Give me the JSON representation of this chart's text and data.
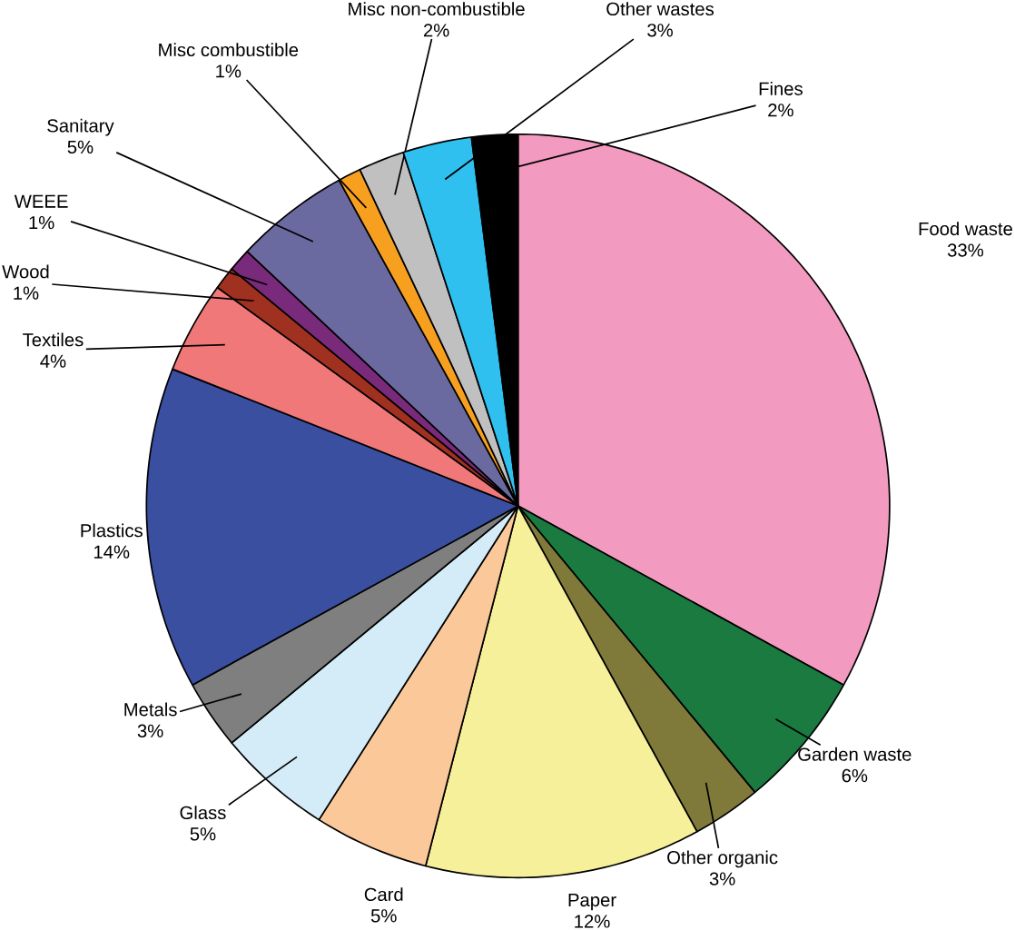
{
  "chart_data": {
    "type": "pie",
    "categories": [
      "Food waste",
      "Garden waste",
      "Other organic",
      "Paper",
      "Card",
      "Glass",
      "Metals",
      "Plastics",
      "Textiles",
      "Wood",
      "WEEE",
      "Sanitary",
      "Misc combustible",
      "Misc non-combustible",
      "Other wastes",
      "Fines"
    ],
    "values": [
      33,
      6,
      3,
      12,
      5,
      5,
      3,
      14,
      4,
      1,
      1,
      5,
      1,
      2,
      3,
      2
    ],
    "value_labels": [
      "33%",
      "6%",
      "3%",
      "12%",
      "5%",
      "5%",
      "3%",
      "14%",
      "4%",
      "1%",
      "1%",
      "5%",
      "1%",
      "2%",
      "3%",
      "2%"
    ],
    "colors": [
      "#f29ac0",
      "#1a7a40",
      "#7f7a3a",
      "#f7f09a",
      "#fbc89a",
      "#d4ecf7",
      "#7f7f7f",
      "#3a4fa0",
      "#f07878",
      "#a03020",
      "#7a2a7a",
      "#6a6aa0",
      "#f7a020",
      "#c0c0c0",
      "#30c0f0",
      "#000000"
    ]
  }
}
